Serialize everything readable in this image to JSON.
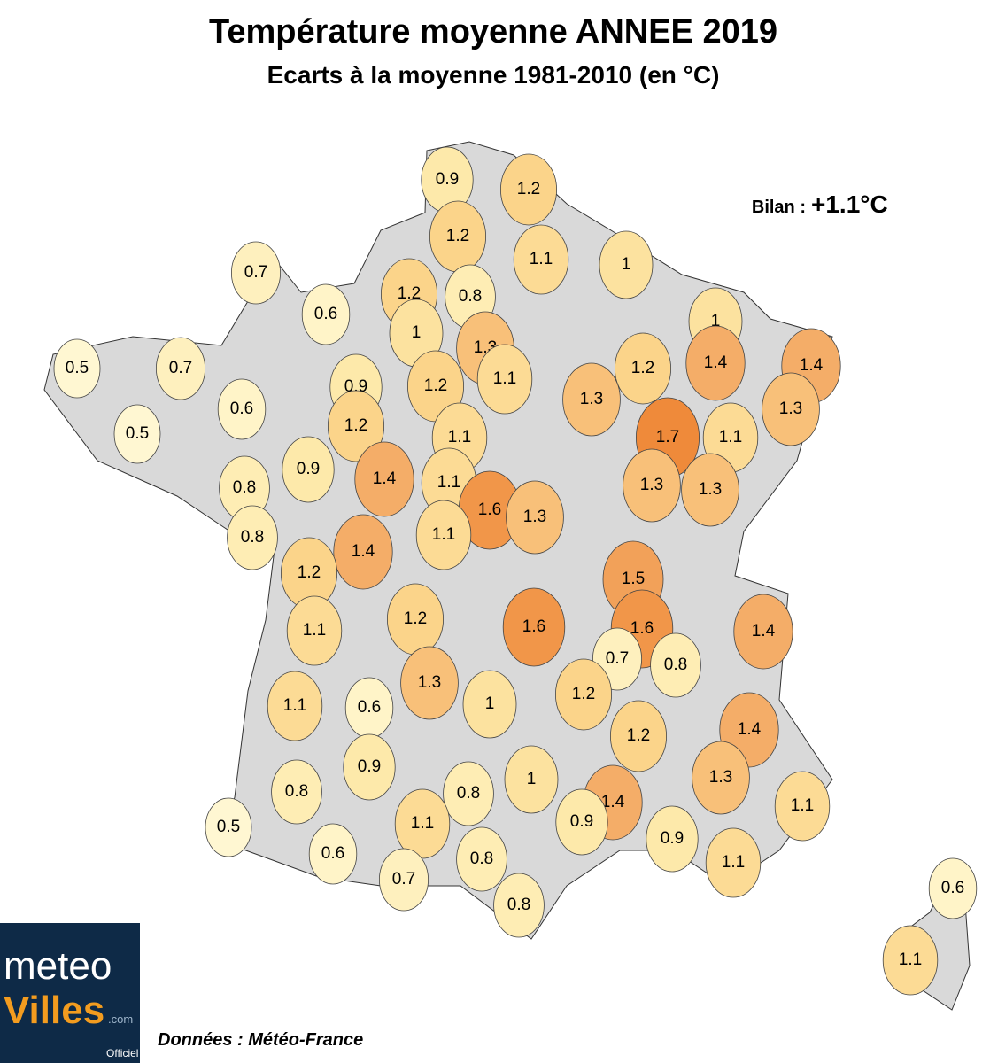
{
  "title": "Température moyenne ANNEE 2019",
  "subtitle": "Ecarts à la moyenne 1981-2010 (en °C)",
  "summary": {
    "label": "Bilan :",
    "value": "+1.1°C"
  },
  "source": "Données : Météo-France",
  "logo": {
    "line1": "meteo",
    "line2": "Villes",
    "suffix": ".com",
    "badge": "Officiel"
  },
  "markers": [
    0.9,
    1.2,
    1.2,
    1.1,
    1,
    0.7,
    1.2,
    0.8,
    0.6,
    1,
    1,
    1.3,
    0.5,
    0.7,
    1.2,
    1.1,
    1.2,
    1.4,
    1.4,
    0.6,
    0.9,
    1.3,
    1.3,
    0.5,
    1.2,
    1.1,
    1.7,
    1.1,
    0.9,
    1.4,
    1.1,
    0.8,
    1.3,
    1.3,
    1.6,
    1.3,
    1.1,
    0.8,
    1.4,
    1.2,
    1.5,
    1.2,
    1.6,
    1.6,
    1.4,
    1.1,
    0.7,
    0.8,
    1.3,
    1.2,
    1,
    1.1,
    0.6,
    1.4,
    1.2,
    0.9,
    1,
    1.3,
    0.8,
    0.8,
    1.4,
    1.1,
    1.1,
    0.9,
    0.5,
    0.9,
    0.6,
    0.8,
    1.1,
    0.7,
    0.6,
    0.8,
    1.1
  ]
}
